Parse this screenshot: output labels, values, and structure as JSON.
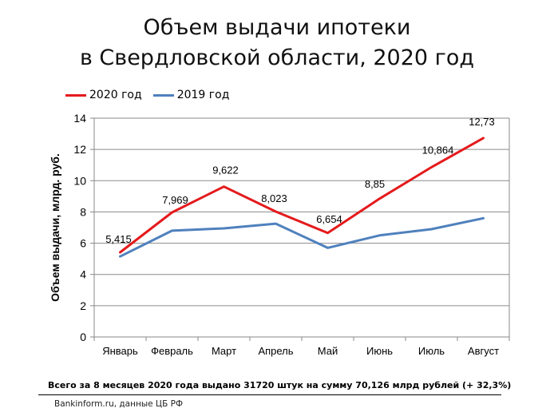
{
  "chart_data": {
    "type": "line",
    "title_line1": "Объем выдачи ипотеки",
    "title_line2": "в Свердловской области, 2020 год",
    "ylabel": "Объем выдачи, млрд. руб.",
    "xlabel": "",
    "categories": [
      "Январь",
      "Февраль",
      "Март",
      "Апрель",
      "Май",
      "Июнь",
      "Июль",
      "Август"
    ],
    "ylim": [
      0,
      14
    ],
    "yticks": [
      0,
      2,
      4,
      6,
      8,
      10,
      12,
      14
    ],
    "grid": true,
    "legend_position": "top-left",
    "series": [
      {
        "name": "2020 год",
        "color": "#e41a1c",
        "values": [
          5.415,
          7.969,
          9.622,
          8.023,
          6.654,
          8.85,
          10.864,
          12.73
        ],
        "labels": [
          "5,415",
          "7,969",
          "9,622",
          "8,023",
          "6,654",
          "8,85",
          "10,864",
          "12,73"
        ]
      },
      {
        "name": "2019 год",
        "color": "#4f81bd",
        "values": [
          5.15,
          6.8,
          6.95,
          7.25,
          5.7,
          6.5,
          6.9,
          7.6
        ]
      }
    ]
  },
  "footnote": "Всего за 8 месяцев 2020 года  выдано 31720 штук на сумму 70,126 млрд  рублей  (+ 32,3%)",
  "source": "Bankinform.ru,  данные ЦБ РФ"
}
